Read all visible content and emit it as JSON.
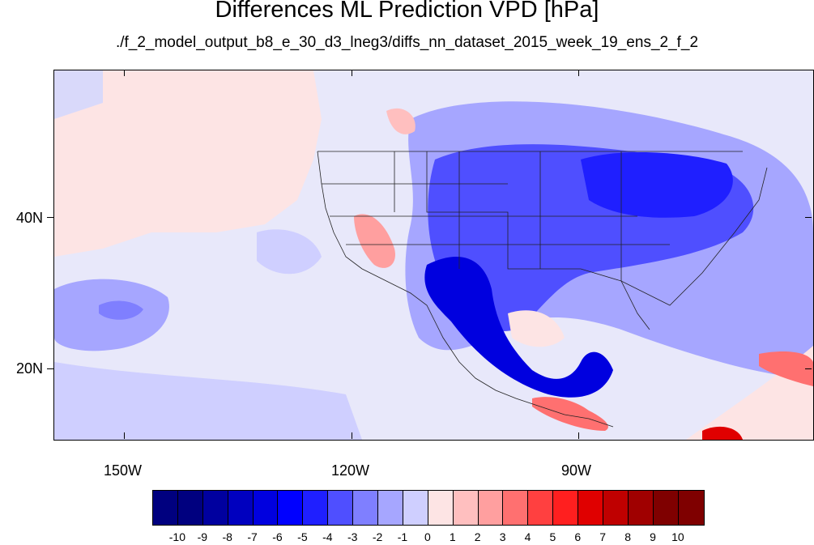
{
  "title": "Differences ML Prediction VPD [hPa]",
  "subtitle": "./f_2_model_output_b8_e_30_d3_lneg3/diffs_nn_dataset_2015_week_19_ens_2_f_2",
  "map": {
    "latitude_labels": [
      "40N",
      "20N"
    ],
    "longitude_labels": [
      "150W",
      "120W",
      "90W"
    ],
    "background_color": "#e8e8fa"
  },
  "colorbar": {
    "labels": [
      "-10",
      "-9",
      "-8",
      "-7",
      "-6",
      "-5",
      "-4",
      "-3",
      "-2",
      "-1",
      "0",
      "1",
      "2",
      "3",
      "4",
      "5",
      "6",
      "7",
      "8",
      "9",
      "10"
    ],
    "colors": [
      "#00007f",
      "#00009f",
      "#0000bf",
      "#0000df",
      "#0000ff",
      "#1f1fff",
      "#4f4fff",
      "#7f7fff",
      "#a6a6ff",
      "#cfcfff",
      "#ebebfa",
      "#fde4e4",
      "#ffbfbf",
      "#ff9f9f",
      "#ff7070",
      "#ff4040",
      "#ff1f1f",
      "#e00000",
      "#bf0000",
      "#a00000",
      "#7f0000"
    ]
  }
}
